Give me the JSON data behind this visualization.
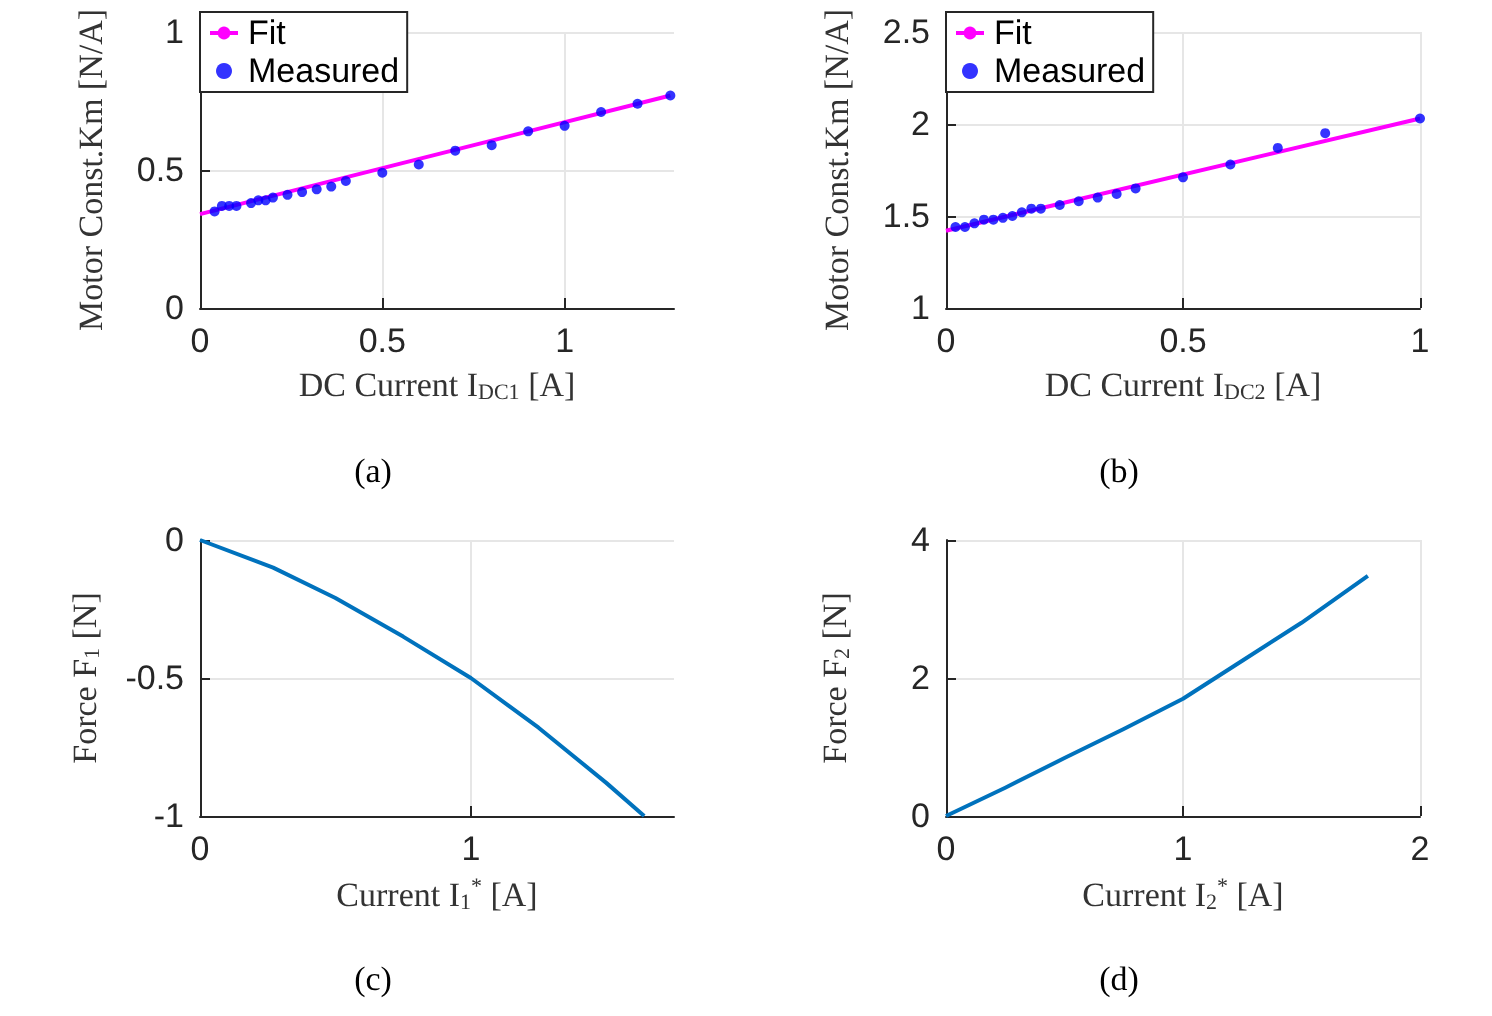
{
  "chart_data": [
    {
      "type": "scatter",
      "xlabel": "DC Current I$_{DC1}$ [A]",
      "ylabel": "Motor Const.Km [N/A]",
      "annotations": [
        "(a)"
      ],
      "xlim": [
        0,
        1.3
      ],
      "xticks": [
        0,
        0.5,
        1
      ],
      "ylim": [
        0,
        1
      ],
      "yticks": [
        0,
        0.5,
        1
      ],
      "grid": true,
      "legend": "top left",
      "series": [
        {
          "name": "Fit",
          "type": "line",
          "color": "#ff00ff",
          "marker": "none",
          "x": [
            0,
            1.29
          ],
          "values": [
            0.34,
            0.77
          ]
        },
        {
          "name": "Measured",
          "color": "#0000ff",
          "marker": "circle",
          "x": [
            0.04,
            0.06,
            0.08,
            0.1,
            0.14,
            0.16,
            0.18,
            0.2,
            0.24,
            0.28,
            0.32,
            0.36,
            0.4,
            0.5,
            0.6,
            0.7,
            0.8,
            0.9,
            1.0,
            1.1,
            1.2,
            1.29
          ],
          "values": [
            0.35,
            0.37,
            0.37,
            0.37,
            0.38,
            0.39,
            0.39,
            0.4,
            0.41,
            0.42,
            0.43,
            0.44,
            0.46,
            0.49,
            0.52,
            0.57,
            0.59,
            0.64,
            0.66,
            0.71,
            0.74,
            0.77
          ]
        }
      ]
    },
    {
      "type": "scatter",
      "xlabel": "DC Current I$_{DC2}$ [A]",
      "ylabel": "Motor Const.Km [N/A]",
      "annotations": [
        "(b)"
      ],
      "xlim": [
        0,
        1
      ],
      "xticks": [
        0,
        0.5,
        1
      ],
      "ylim": [
        1,
        2.5
      ],
      "yticks": [
        1,
        1.5,
        2,
        2.5
      ],
      "grid": true,
      "legend": "top left",
      "series": [
        {
          "name": "Fit",
          "type": "line",
          "color": "#ff00ff",
          "marker": "none",
          "x": [
            0,
            1
          ],
          "values": [
            1.42,
            2.03
          ]
        },
        {
          "name": "Measured",
          "color": "#0000ff",
          "marker": "circle",
          "x": [
            0.02,
            0.04,
            0.06,
            0.08,
            0.1,
            0.12,
            0.14,
            0.16,
            0.18,
            0.2,
            0.24,
            0.28,
            0.32,
            0.36,
            0.4,
            0.5,
            0.6,
            0.7,
            0.8,
            1.0
          ],
          "values": [
            1.44,
            1.44,
            1.46,
            1.48,
            1.48,
            1.49,
            1.5,
            1.52,
            1.54,
            1.54,
            1.56,
            1.58,
            1.6,
            1.62,
            1.65,
            1.71,
            1.78,
            1.87,
            1.95,
            2.03
          ]
        }
      ]
    },
    {
      "type": "line",
      "xlabel": "Current I$_{1}$$^{*}$ [A]",
      "ylabel": "Force F$_{1}$ [N]",
      "annotations": [
        "(c)"
      ],
      "xlim": [
        0,
        1.75
      ],
      "xticks": [
        0,
        1
      ],
      "ylim": [
        -1,
        0
      ],
      "yticks": [
        -1,
        -0.5,
        0
      ],
      "grid": true,
      "series": [
        {
          "color": "#0072bd",
          "x": [
            0,
            0.27,
            0.5,
            0.75,
            1,
            1.25,
            1.5,
            1.64
          ],
          "values": [
            0,
            -0.1,
            -0.21,
            -0.35,
            -0.5,
            -0.68,
            -0.88,
            -1.0
          ]
        }
      ]
    },
    {
      "type": "line",
      "xlabel": "Current I$_{2}$$^{*}$ [A]",
      "ylabel": "Force F$_{2}$ [N]",
      "annotations": [
        "(d)"
      ],
      "xlim": [
        0,
        2
      ],
      "xticks": [
        0,
        1,
        2
      ],
      "ylim": [
        0,
        4
      ],
      "yticks": [
        0,
        2,
        4
      ],
      "grid": true,
      "series": [
        {
          "color": "#0072bd",
          "x": [
            0,
            0.25,
            0.5,
            0.75,
            1,
            1.25,
            1.5,
            1.78
          ],
          "values": [
            0,
            0.41,
            0.84,
            1.26,
            1.7,
            2.25,
            2.8,
            3.48
          ]
        }
      ]
    }
  ]
}
